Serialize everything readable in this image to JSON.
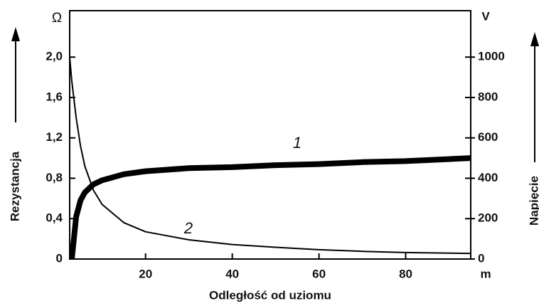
{
  "chart_data": {
    "type": "line",
    "xlabel": "Odległość od uziomu",
    "ylabel": "Rezystancja",
    "y2label": "Napięcie",
    "yunit": "Ω",
    "y2unit": "V",
    "xunit": "m",
    "x": [
      2.5,
      3,
      4,
      5,
      6,
      8,
      10,
      15,
      20,
      30,
      40,
      50,
      60,
      70,
      80,
      95
    ],
    "series": [
      {
        "name": "1",
        "color": "#000000",
        "axis": "y",
        "values": [
          null,
          0,
          0.42,
          0.58,
          0.66,
          0.74,
          0.78,
          0.84,
          0.87,
          0.9,
          0.91,
          0.93,
          0.94,
          0.96,
          0.97,
          1.0
        ]
      },
      {
        "name": "2",
        "color": "#000000",
        "axis": "y2",
        "values": [
          1000,
          880,
          700,
          560,
          460,
          340,
          270,
          180,
          135,
          95,
          72,
          58,
          46,
          38,
          32,
          28
        ]
      }
    ],
    "xlim": [
      2.5,
      95
    ],
    "xticks": [
      20,
      40,
      60,
      80
    ],
    "ylim": [
      0,
      2.46
    ],
    "yticks": [
      {
        "value": 0,
        "label": "0"
      },
      {
        "value": 0.4,
        "label": "0,4"
      },
      {
        "value": 0.8,
        "label": "0,8"
      },
      {
        "value": 1.2,
        "label": "1,2"
      },
      {
        "value": 1.6,
        "label": "1,6"
      },
      {
        "value": 2.0,
        "label": "2,0"
      }
    ],
    "y2lim": [
      0,
      1230
    ],
    "y2ticks": [
      0,
      200,
      400,
      600,
      800,
      1000
    ],
    "grid": false
  }
}
